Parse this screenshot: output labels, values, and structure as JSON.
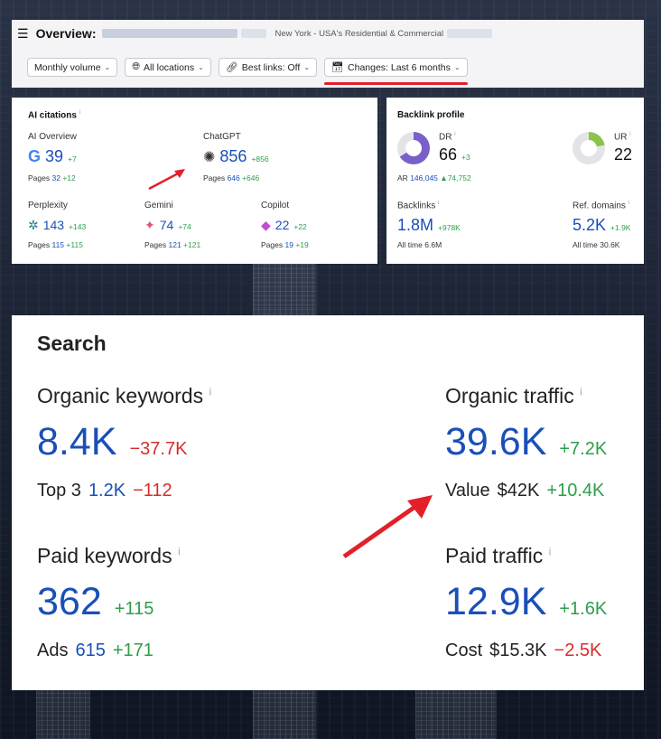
{
  "header": {
    "menu_icon": "hamburger-icon",
    "title": "Overview:",
    "location": "New York - USA's Residential & Commercial"
  },
  "filters": [
    {
      "label": "Monthly volume",
      "icon": ""
    },
    {
      "label": "All locations",
      "icon": "globe-icon"
    },
    {
      "label": "Best links: Off",
      "icon": "link-icon"
    },
    {
      "label": "Changes: Last 6 months",
      "icon": "calendar-icon"
    }
  ],
  "ai_citations": {
    "title": "AI citations",
    "info": "i",
    "ai_overview": {
      "label": "AI Overview",
      "value": "39",
      "delta": "+7",
      "pages_label": "Pages",
      "pages": "32",
      "pages_delta": "+12"
    },
    "chatgpt": {
      "label": "ChatGPT",
      "value": "856",
      "delta": "+856",
      "pages_label": "Pages",
      "pages": "646",
      "pages_delta": "+646"
    },
    "perplexity": {
      "label": "Perplexity",
      "value": "143",
      "delta": "+143",
      "pages_label": "Pages",
      "pages": "115",
      "pages_delta": "+115"
    },
    "gemini": {
      "label": "Gemini",
      "value": "74",
      "delta": "+74",
      "pages_label": "Pages",
      "pages": "121",
      "pages_delta": "+121"
    },
    "copilot": {
      "label": "Copilot",
      "value": "22",
      "delta": "+22",
      "pages_label": "Pages",
      "pages": "19",
      "pages_delta": "+19"
    }
  },
  "backlink_profile": {
    "title": "Backlink profile",
    "dr": {
      "label": "DR",
      "value": "66",
      "delta": "+3",
      "fill_fraction": 0.66
    },
    "ur": {
      "label": "UR",
      "value": "22",
      "fill_fraction": 0.22
    },
    "ar": {
      "label": "AR",
      "value": "146,045",
      "delta": "▲74,752"
    },
    "backlinks": {
      "label": "Backlinks",
      "value": "1.8M",
      "delta": "+978K",
      "alltime_label": "All time",
      "alltime": "6.6M"
    },
    "ref_domains": {
      "label": "Ref. domains",
      "value": "5.2K",
      "delta": "+1.9K",
      "alltime_label": "All time",
      "alltime": "30.6K"
    }
  },
  "search": {
    "title": "Search",
    "organic_keywords": {
      "label": "Organic keywords",
      "value": "8.4K",
      "delta": "−37.7K",
      "sub_label": "Top 3",
      "sub_value": "1.2K",
      "sub_delta": "−112"
    },
    "organic_traffic": {
      "label": "Organic traffic",
      "value": "39.6K",
      "delta": "+7.2K",
      "sub_label": "Value",
      "sub_value": "$42K",
      "sub_delta": "+10.4K"
    },
    "paid_keywords": {
      "label": "Paid keywords",
      "value": "362",
      "delta": "+115",
      "sub_label": "Ads",
      "sub_value": "615",
      "sub_delta": "+171"
    },
    "paid_traffic": {
      "label": "Paid traffic",
      "value": "12.9K",
      "delta": "+1.6K",
      "sub_label": "Cost",
      "sub_value": "$15.3K",
      "sub_delta": "−2.5K"
    }
  },
  "colors": {
    "accent": "#1a4fb8",
    "positive": "#2e9e4a",
    "negative": "#d92c2c",
    "arrow": "#e3202a",
    "dr_donut": "#7a5fc9",
    "ur_donut": "#8cc34a"
  }
}
